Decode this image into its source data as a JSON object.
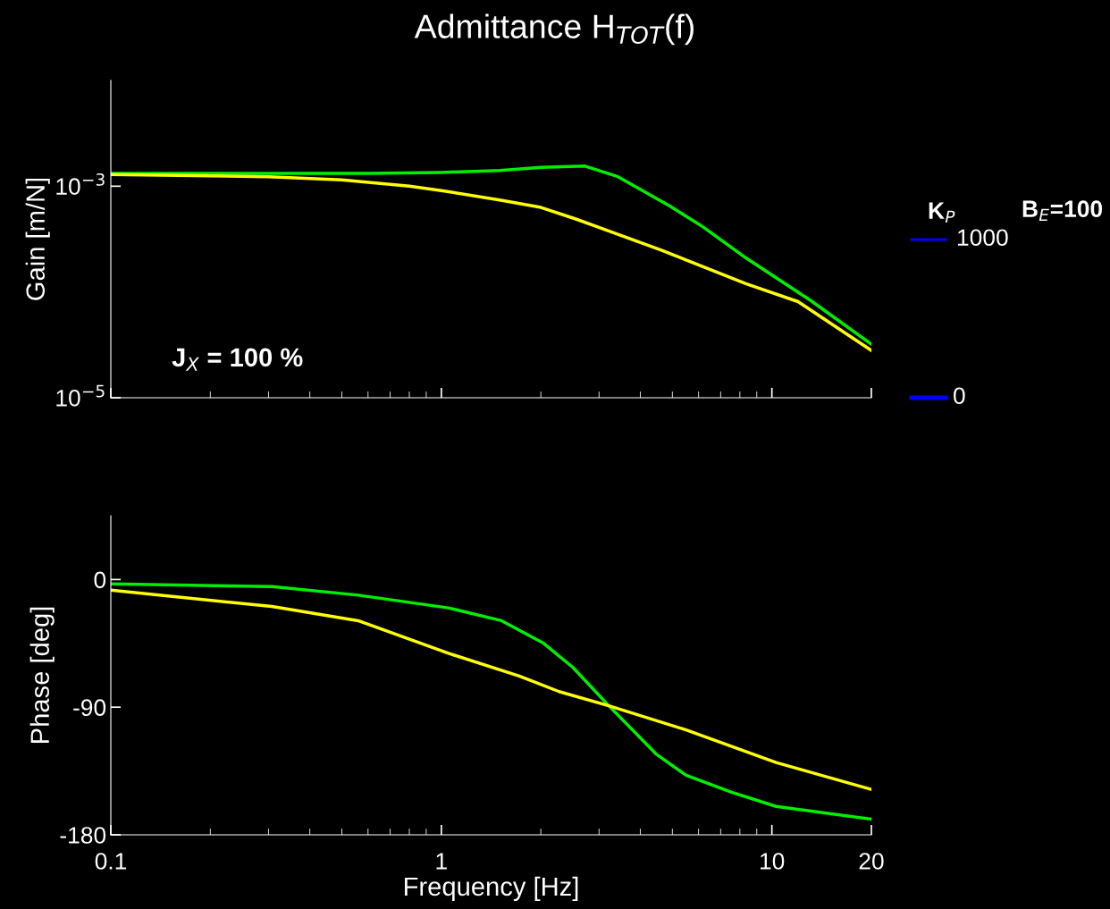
{
  "chart_data": [
    {
      "type": "line",
      "title": "Admittance H$_{TOT}$(f)",
      "ylabel": "Gain [m/N]",
      "log": "xy",
      "xlim": [
        0.1,
        20
      ],
      "xticks": [
        {
          "value": 0.1,
          "label": null
        },
        {
          "value": 1,
          "label": null
        },
        {
          "value": 10,
          "label": null
        },
        {
          "value": 20,
          "label": null
        }
      ],
      "ylim": [
        1e-05,
        0.01
      ],
      "yticks": [
        {
          "value": 1e-05,
          "label": "10$^{−5}$"
        },
        {
          "value": 0.001,
          "label": "10$^{−3}$"
        }
      ],
      "tick_labels": "y",
      "grid": false,
      "annotations": [
        "J$_{X}$ = 100 %",
        "K$_{P}$",
        "1000",
        "0",
        "B$_{E}$=100"
      ],
      "series": [
        {
          "color": "#00ee00",
          "x": [
            0.1,
            0.3,
            0.6,
            1,
            1.5,
            2,
            2.72,
            3.42,
            4.91,
            6.2,
            8.34,
            13.1,
            20
          ],
          "values": [
            0.00132,
            0.00132,
            0.00132,
            0.00135,
            0.00141,
            0.00151,
            0.00155,
            0.00123,
            0.00065,
            0.00041,
            0.00021,
            8.3e-05,
            3.2e-05
          ]
        },
        {
          "color": "#ffff00",
          "x": [
            0.1,
            0.3,
            0.5,
            0.8,
            1,
            1.5,
            2,
            2.55,
            4.61,
            8.34,
            12,
            20
          ],
          "values": [
            0.00129,
            0.00123,
            0.00115,
            0.001,
            0.00091,
            0.00074,
            0.00063,
            0.00049,
            0.00025,
            0.00012,
            8.1e-05,
            2.8e-05
          ]
        }
      ]
    },
    {
      "type": "line",
      "xlabel": "Frequency [Hz]",
      "ylabel": "Phase [deg]",
      "log": "x",
      "xlim": [
        0.1,
        20
      ],
      "xticks": [
        0.1,
        1,
        10,
        20
      ],
      "ylim": [
        -180,
        45
      ],
      "yticks": [
        -180,
        -90,
        0
      ],
      "grid": false,
      "series": [
        {
          "color": "#00ee00",
          "x": [
            0.1,
            0.307,
            0.56,
            1.05,
            1.52,
            2.04,
            2.5,
            3.21,
            4.46,
            5.5,
            7.55,
            10.3,
            20
          ],
          "values": [
            -3,
            -5,
            -11,
            -20,
            -29,
            -45,
            -62,
            -89,
            -123,
            -138,
            -150,
            -160,
            -169
          ]
        },
        {
          "color": "#ffff00",
          "x": [
            0.1,
            0.307,
            0.56,
            1.05,
            1.72,
            2.27,
            3.21,
            5.5,
            10.3,
            20
          ],
          "values": [
            -7.5,
            -19,
            -29,
            -52,
            -68,
            -79,
            -89,
            -106,
            -129,
            -148
          ]
        }
      ]
    }
  ]
}
